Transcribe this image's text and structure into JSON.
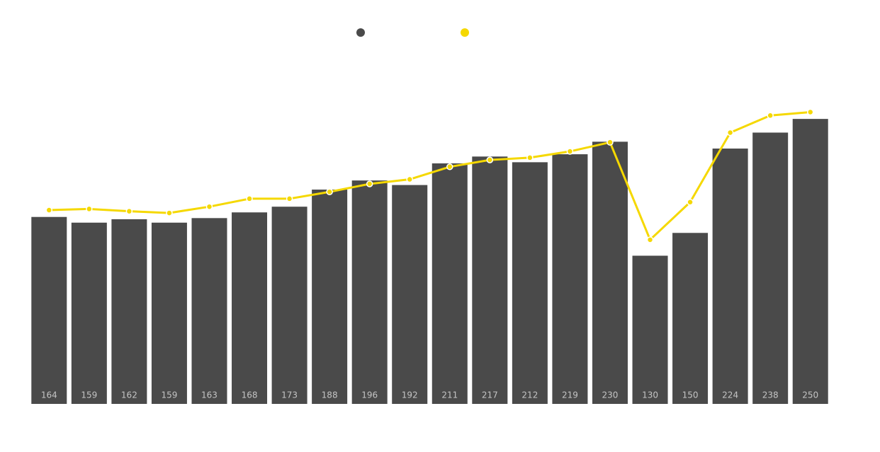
{
  "chart_data": {
    "type": "bar-line",
    "categories": [
      null,
      null,
      null,
      null,
      null,
      null,
      null,
      null,
      null,
      null,
      null,
      null,
      null,
      null,
      null,
      null,
      null,
      null,
      null,
      null
    ],
    "series": [
      {
        "type": "bar",
        "color": "#4a4a4a",
        "values": [
          164,
          159,
          162,
          159,
          163,
          168,
          173,
          188,
          196,
          192,
          211,
          217,
          212,
          219,
          230,
          130,
          150,
          224,
          238,
          250
        ]
      },
      {
        "type": "line",
        "color": "#f5d800",
        "values": [
          170,
          171,
          169,
          167.5,
          173,
          180,
          180,
          186,
          193,
          197,
          208,
          214,
          216,
          221.5,
          229.5,
          144,
          177,
          238,
          253,
          256
        ]
      }
    ],
    "ylim": [
      0,
      260
    ],
    "grid": false
  }
}
